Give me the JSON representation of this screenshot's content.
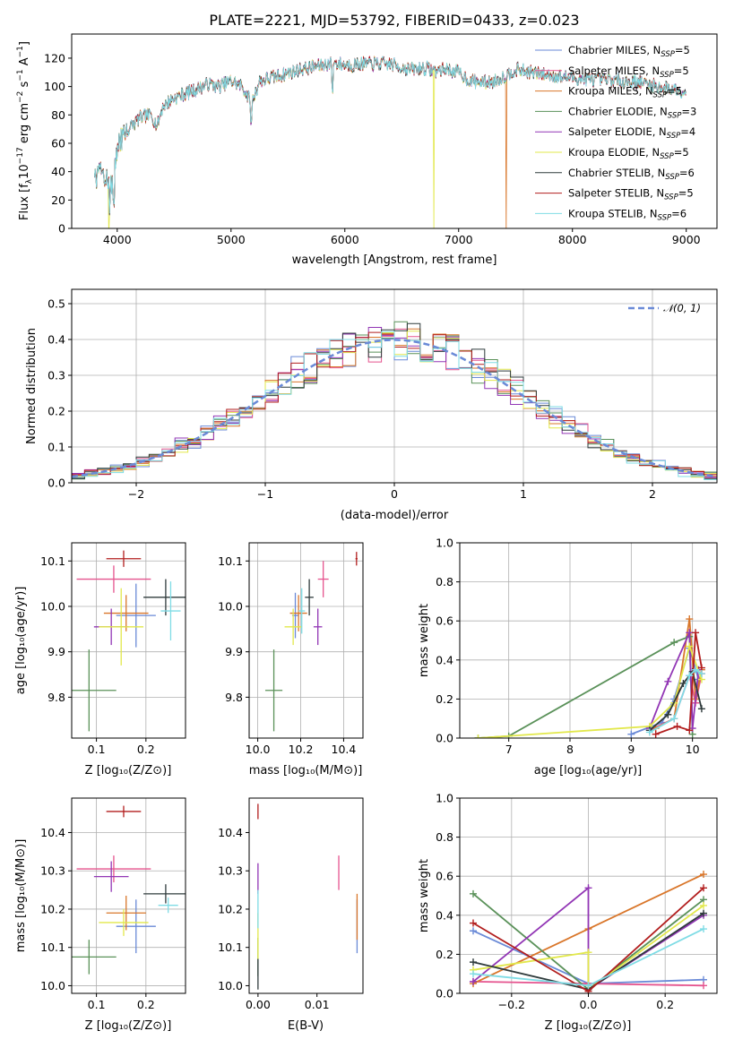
{
  "colors": {
    "chabrier_miles": "#6a8ad7",
    "salpeter_miles": "#e5538e",
    "kroupa_miles": "#d9762a",
    "chabrier_elodie": "#5a9159",
    "salpeter_elodie": "#9236b5",
    "kroupa_elodie": "#e2e84b",
    "chabrier_stelib": "#2f3b3c",
    "salpeter_stelib": "#b21e1e",
    "kroupa_stelib": "#7fdce5",
    "normal_curve": "#6a8ad7",
    "grid": "#b0b0b0"
  },
  "chart_data": [
    {
      "id": "spectrum",
      "type": "line",
      "title": "PLATE=2221, MJD=53792, FIBERID=0433, z=0.023",
      "xlabel": "wavelength [Angstrom, rest frame]",
      "ylabel": "Flux [f",
      "xlim": [
        3600,
        9270
      ],
      "ylim": [
        0,
        137
      ],
      "xticks": [
        "4000",
        "5000",
        "6000",
        "7000",
        "8000",
        "9000"
      ],
      "yticks": [
        "0",
        "20",
        "40",
        "60",
        "80",
        "100",
        "120"
      ],
      "grid": false,
      "legend_position": "top-right",
      "series": [
        {
          "name": "Chabrier MILES, N",
          "nssp": "=5"
        },
        {
          "name": "Salpeter MILES, N",
          "nssp": "=5"
        },
        {
          "name": "Kroupa MILES, N",
          "nssp": "=5"
        },
        {
          "name": "Chabrier ELODIE, N",
          "nssp": "=3"
        },
        {
          "name": "Salpeter ELODIE, N",
          "nssp": "=4"
        },
        {
          "name": "Kroupa ELODIE, N",
          "nssp": "=5"
        },
        {
          "name": "Chabrier STELIB, N",
          "nssp": "=6"
        },
        {
          "name": "Salpeter STELIB, N",
          "nssp": "=5"
        },
        {
          "name": "Kroupa STELIB, N",
          "nssp": "=6"
        }
      ],
      "spectrum_start": 3800,
      "spectrum_end": 9000,
      "drop_features": [
        {
          "wavelength": 3925,
          "series": "Kroupa ELODIE"
        },
        {
          "wavelength": 6780,
          "series": "Kroupa ELODIE"
        },
        {
          "wavelength": 7420,
          "series": "Kroupa MILES"
        }
      ],
      "continuum": [
        [
          3800,
          33
        ],
        [
          3850,
          42
        ],
        [
          3900,
          35
        ],
        [
          3950,
          30
        ],
        [
          4000,
          52
        ],
        [
          4050,
          68
        ],
        [
          4100,
          70
        ],
        [
          4200,
          78
        ],
        [
          4300,
          80
        ],
        [
          4350,
          72
        ],
        [
          4400,
          86
        ],
        [
          4500,
          92
        ],
        [
          4600,
          95
        ],
        [
          4700,
          98
        ],
        [
          4800,
          102
        ],
        [
          4900,
          100
        ],
        [
          5000,
          104
        ],
        [
          5100,
          100
        ],
        [
          5180,
          88
        ],
        [
          5250,
          104
        ],
        [
          5400,
          107
        ],
        [
          5600,
          112
        ],
        [
          5800,
          115
        ],
        [
          5900,
          117
        ],
        [
          6000,
          115
        ],
        [
          6200,
          116
        ],
        [
          6400,
          116
        ],
        [
          6563,
          112
        ],
        [
          6700,
          113
        ],
        [
          6800,
          111
        ],
        [
          6900,
          112
        ],
        [
          7000,
          110
        ],
        [
          7100,
          104
        ],
        [
          7200,
          103
        ],
        [
          7300,
          103
        ],
        [
          7400,
          107
        ],
        [
          7500,
          112
        ],
        [
          7700,
          109
        ],
        [
          8000,
          106
        ],
        [
          8200,
          105
        ],
        [
          8400,
          104
        ],
        [
          8600,
          103
        ],
        [
          8800,
          99
        ],
        [
          9000,
          97
        ]
      ]
    },
    {
      "id": "residuals",
      "type": "histogram",
      "xlabel": "(data-model)/error",
      "ylabel": "Normed distribution",
      "xlim": [
        -2.5,
        2.5
      ],
      "ylim": [
        0,
        0.54
      ],
      "xticks": [
        "−2",
        "−1",
        "0",
        "1",
        "2"
      ],
      "yticks": [
        "0.0",
        "0.1",
        "0.2",
        "0.3",
        "0.4",
        "0.5"
      ],
      "grid": true,
      "bin_width": 0.1,
      "legend_label": "𝒩(0, 1)",
      "legend_position": "top-right"
    },
    {
      "id": "age_vs_Z",
      "type": "errorbar",
      "xlabel": "Z [log₁₀(Z/Z⊙)]",
      "ylabel": "age  [log₁₀(age/yr)]",
      "xlim": [
        0.05,
        0.28
      ],
      "ylim": [
        9.71,
        10.14
      ],
      "xticks": [
        "0.1",
        "0.2"
      ],
      "yticks": [
        "9.8",
        "9.9",
        "10.0",
        "10.1"
      ],
      "grid": true,
      "points": [
        {
          "series": "Chabrier MILES",
          "x": 0.18,
          "xerr": 0.04,
          "y": 9.98,
          "yerr": 0.07
        },
        {
          "series": "Salpeter MILES",
          "x": 0.135,
          "xerr": 0.075,
          "y": 10.06,
          "yerr": 0.03
        },
        {
          "series": "Kroupa MILES",
          "x": 0.16,
          "xerr": 0.045,
          "y": 9.985,
          "yerr": 0.04
        },
        {
          "series": "Chabrier ELODIE",
          "x": 0.085,
          "xerr": 0.055,
          "y": 9.815,
          "yerr": 0.09
        },
        {
          "series": "Salpeter ELODIE",
          "x": 0.13,
          "xerr": 0.035,
          "y": 9.955,
          "yerr": 0.04
        },
        {
          "series": "Kroupa ELODIE",
          "x": 0.15,
          "xerr": 0.045,
          "y": 9.955,
          "yerr": 0.085
        },
        {
          "series": "Chabrier STELIB",
          "x": 0.24,
          "xerr": 0.045,
          "y": 10.02,
          "yerr": 0.04
        },
        {
          "series": "Salpeter STELIB",
          "x": 0.155,
          "xerr": 0.035,
          "y": 10.105,
          "yerr": 0.018
        },
        {
          "series": "Kroupa STELIB",
          "x": 0.25,
          "xerr": 0.02,
          "y": 9.99,
          "yerr": 0.065
        }
      ]
    },
    {
      "id": "age_vs_mass",
      "type": "errorbar",
      "xlabel": "mass [log₁₀(M/M⊙)]",
      "ylabel": "",
      "xlim": [
        9.96,
        10.49
      ],
      "ylim": [
        9.71,
        10.14
      ],
      "xticks": [
        "10.0",
        "10.2",
        "10.4"
      ],
      "yticks": [
        "9.8",
        "9.9",
        "10.0",
        "10.1"
      ],
      "grid": true,
      "points": [
        {
          "series": "Chabrier MILES",
          "x": 10.175,
          "xerr": 0.015,
          "y": 9.98,
          "yerr": 0.05
        },
        {
          "series": "Salpeter MILES",
          "x": 10.305,
          "xerr": 0.025,
          "y": 10.06,
          "yerr": 0.04
        },
        {
          "series": "Kroupa MILES",
          "x": 10.19,
          "xerr": 0.04,
          "y": 9.985,
          "yerr": 0.04
        },
        {
          "series": "Chabrier ELODIE",
          "x": 10.075,
          "xerr": 0.04,
          "y": 9.815,
          "yerr": 0.09
        },
        {
          "series": "Salpeter ELODIE",
          "x": 10.28,
          "xerr": 0.02,
          "y": 9.955,
          "yerr": 0.04
        },
        {
          "series": "Kroupa ELODIE",
          "x": 10.165,
          "xerr": 0.04,
          "y": 9.955,
          "yerr": 0.04
        },
        {
          "series": "Chabrier STELIB",
          "x": 10.24,
          "xerr": 0.02,
          "y": 10.02,
          "yerr": 0.04
        },
        {
          "series": "Salpeter STELIB",
          "x": 10.46,
          "xerr": 0.005,
          "y": 10.105,
          "yerr": 0.015
        },
        {
          "series": "Kroupa STELIB",
          "x": 10.205,
          "xerr": 0.015,
          "y": 9.99,
          "yerr": 0.05
        }
      ]
    },
    {
      "id": "mass_weight_vs_age",
      "type": "line",
      "xlabel": "age  [log₁₀(age/yr)]",
      "ylabel": "mass weight",
      "xlim": [
        6.2,
        10.4
      ],
      "ylim": [
        0,
        1
      ],
      "xticks": [
        "7",
        "8",
        "9",
        "10"
      ],
      "yticks": [
        "0.0",
        "0.2",
        "0.4",
        "0.6",
        "0.8",
        "1.0"
      ],
      "grid": true,
      "series": [
        {
          "name": "Chabrier MILES",
          "x": [
            9.0,
            9.5,
            9.7,
            9.95,
            10.1
          ],
          "y": [
            0.02,
            0.08,
            0.2,
            0.46,
            0.3
          ]
        },
        {
          "name": "Salpeter MILES",
          "x": [
            9.3,
            9.7,
            9.95,
            10.05,
            10.15
          ],
          "y": [
            0.04,
            0.1,
            0.32,
            0.18,
            0.33
          ]
        },
        {
          "name": "Kroupa MILES",
          "x": [
            9.4,
            9.7,
            9.95,
            10.05,
            10.15
          ],
          "y": [
            0.05,
            0.1,
            0.61,
            0.2,
            0.35
          ]
        },
        {
          "name": "Chabrier ELODIE",
          "x": [
            6.5,
            7.0,
            9.7,
            9.95,
            10.0
          ],
          "y": [
            0.0,
            0.01,
            0.49,
            0.52,
            0.02
          ]
        },
        {
          "name": "Salpeter ELODIE",
          "x": [
            9.3,
            9.6,
            9.95,
            10.0,
            10.1
          ],
          "y": [
            0.05,
            0.29,
            0.54,
            0.05,
            0.35
          ]
        },
        {
          "name": "Kroupa ELODIE",
          "x": [
            6.5,
            9.3,
            9.7,
            9.95,
            10.15
          ],
          "y": [
            0.0,
            0.06,
            0.18,
            0.47,
            0.3
          ]
        },
        {
          "name": "Chabrier STELIB",
          "x": [
            9.3,
            9.6,
            9.85,
            10.0,
            10.15
          ],
          "y": [
            0.04,
            0.12,
            0.28,
            0.34,
            0.15
          ]
        },
        {
          "name": "Salpeter STELIB",
          "x": [
            9.4,
            9.75,
            9.95,
            10.05,
            10.15
          ],
          "y": [
            0.02,
            0.06,
            0.04,
            0.54,
            0.36
          ]
        },
        {
          "name": "Kroupa STELIB",
          "x": [
            9.3,
            9.7,
            9.95,
            10.05,
            10.15
          ],
          "y": [
            0.03,
            0.1,
            0.32,
            0.35,
            0.33
          ]
        }
      ]
    },
    {
      "id": "mass_vs_Z",
      "type": "errorbar",
      "xlabel": "Z [log₁₀(Z/Z⊙)]",
      "ylabel": "mass [log₁₀(M/M⊙)]",
      "xlim": [
        0.05,
        0.28
      ],
      "ylim": [
        9.98,
        10.49
      ],
      "xticks": [
        "0.1",
        "0.2"
      ],
      "yticks": [
        "10.0",
        "10.1",
        "10.2",
        "10.3",
        "10.4"
      ],
      "grid": true,
      "points": [
        {
          "series": "Chabrier MILES",
          "x": 0.18,
          "xerr": 0.04,
          "y": 10.155,
          "yerr": 0.07
        },
        {
          "series": "Salpeter MILES",
          "x": 0.135,
          "xerr": 0.075,
          "y": 10.305,
          "yerr": 0.035
        },
        {
          "series": "Kroupa MILES",
          "x": 0.16,
          "xerr": 0.04,
          "y": 10.19,
          "yerr": 0.045
        },
        {
          "series": "Chabrier ELODIE",
          "x": 0.085,
          "xerr": 0.055,
          "y": 10.075,
          "yerr": 0.045
        },
        {
          "series": "Salpeter ELODIE",
          "x": 0.13,
          "xerr": 0.035,
          "y": 10.285,
          "yerr": 0.04
        },
        {
          "series": "Kroupa ELODIE",
          "x": 0.155,
          "xerr": 0.05,
          "y": 10.165,
          "yerr": 0.035
        },
        {
          "series": "Chabrier STELIB",
          "x": 0.24,
          "xerr": 0.045,
          "y": 10.24,
          "yerr": 0.025
        },
        {
          "series": "Salpeter STELIB",
          "x": 0.155,
          "xerr": 0.035,
          "y": 10.455,
          "yerr": 0.015
        },
        {
          "series": "Kroupa STELIB",
          "x": 0.245,
          "xerr": 0.02,
          "y": 10.21,
          "yerr": 0.02
        }
      ]
    },
    {
      "id": "mass_vs_ebv",
      "type": "errorbar",
      "xlabel": "E(B-V)",
      "ylabel": "",
      "xlim": [
        -0.0015,
        0.0178
      ],
      "ylim": [
        9.98,
        10.49
      ],
      "xticks": [
        "0.00",
        "0.01"
      ],
      "yticks": [
        "10.0",
        "10.1",
        "10.2",
        "10.3",
        "10.4"
      ],
      "grid": false,
      "points": [
        {
          "series": "Chabrier MILES",
          "x": 0.0168,
          "xerr": 0.0,
          "y": 10.155,
          "yerr": 0.07
        },
        {
          "series": "Salpeter MILES",
          "x": 0.0137,
          "xerr": 0.0,
          "y": 10.295,
          "yerr": 0.045
        },
        {
          "series": "Kroupa MILES",
          "x": 0.0168,
          "xerr": 0.0,
          "y": 10.18,
          "yerr": 0.06
        },
        {
          "series": "Chabrier ELODIE",
          "x": 0.0,
          "xerr": 0.0,
          "y": 10.075,
          "yerr": 0.05
        },
        {
          "series": "Salpeter ELODIE",
          "x": 0.0,
          "xerr": 0.0,
          "y": 10.28,
          "yerr": 0.04
        },
        {
          "series": "Kroupa ELODIE",
          "x": 0.0,
          "xerr": 0.0,
          "y": 10.13,
          "yerr": 0.06
        },
        {
          "series": "Chabrier STELIB",
          "x": 0.0,
          "xerr": 0.0,
          "y": 10.03,
          "yerr": 0.04
        },
        {
          "series": "Salpeter STELIB",
          "x": 0.0,
          "xerr": 0.0,
          "y": 10.455,
          "yerr": 0.02
        },
        {
          "series": "Kroupa STELIB",
          "x": 0.0,
          "xerr": 0.0,
          "y": 10.2,
          "yerr": 0.05
        }
      ]
    },
    {
      "id": "mass_weight_vs_Z",
      "type": "line",
      "xlabel": "Z [log₁₀(Z/Z⊙)]",
      "ylabel": "mass weight",
      "xlim": [
        -0.335,
        0.335
      ],
      "ylim": [
        0,
        1
      ],
      "xticks": [
        "−0.2",
        "0.0",
        "0.2"
      ],
      "yticks": [
        "0.0",
        "0.2",
        "0.4",
        "0.6",
        "0.8",
        "1.0"
      ],
      "grid": true,
      "series": [
        {
          "name": "Chabrier MILES",
          "x": [
            -0.3,
            0.0,
            0.3
          ],
          "y": [
            0.32,
            0.05,
            0.07
          ]
        },
        {
          "name": "Salpeter MILES",
          "x": [
            -0.3,
            0.0,
            0.3
          ],
          "y": [
            0.06,
            0.05,
            0.04
          ]
        },
        {
          "name": "Kroupa MILES",
          "x": [
            -0.3,
            0.0,
            0.3
          ],
          "y": [
            0.05,
            0.33,
            0.61
          ]
        },
        {
          "name": "Chabrier ELODIE",
          "x": [
            -0.3,
            0.0,
            0.3
          ],
          "y": [
            0.51,
            0.02,
            0.48
          ]
        },
        {
          "name": "Salpeter ELODIE",
          "x": [
            -0.3,
            0.0,
            0.0,
            0.3
          ],
          "y": [
            0.06,
            0.54,
            0.02,
            0.4
          ]
        },
        {
          "name": "Kroupa ELODIE",
          "x": [
            -0.3,
            0.0,
            0.0,
            0.3
          ],
          "y": [
            0.12,
            0.21,
            0.02,
            0.45
          ]
        },
        {
          "name": "Chabrier STELIB",
          "x": [
            -0.3,
            0.0,
            0.3
          ],
          "y": [
            0.16,
            0.02,
            0.41
          ]
        },
        {
          "name": "Salpeter STELIB",
          "x": [
            -0.3,
            0.0,
            0.3
          ],
          "y": [
            0.36,
            0.01,
            0.54
          ]
        },
        {
          "name": "Kroupa STELIB",
          "x": [
            -0.3,
            0.0,
            0.3
          ],
          "y": [
            0.1,
            0.04,
            0.33
          ]
        }
      ]
    }
  ]
}
